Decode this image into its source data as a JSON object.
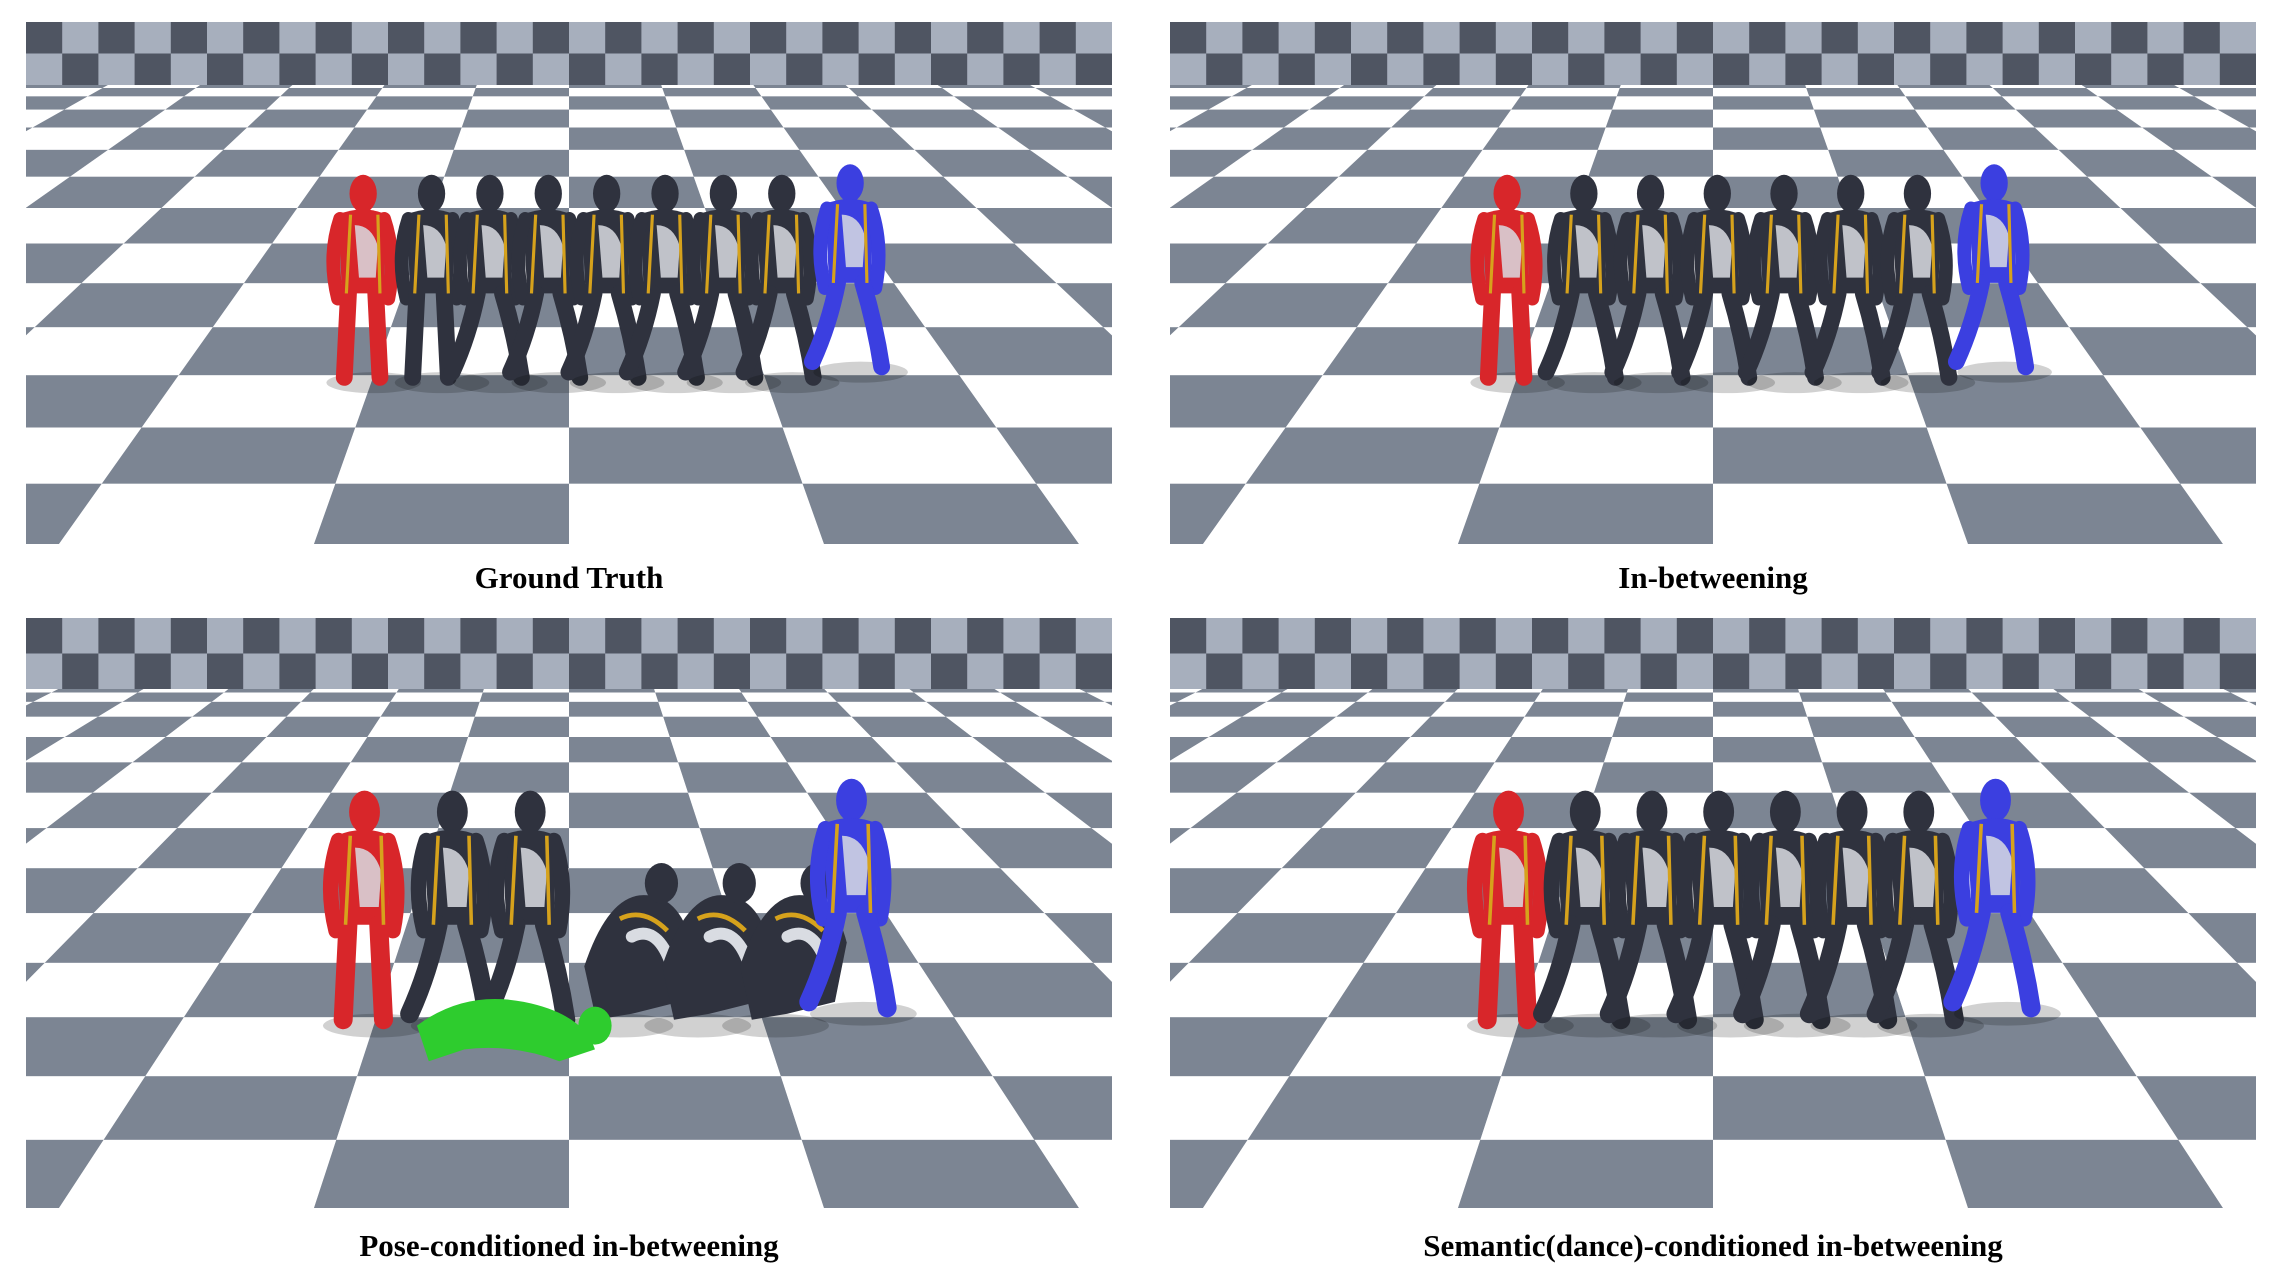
{
  "panels": [
    {
      "caption": "Ground Truth",
      "figures": [
        {
          "color": "#2f323e",
          "pose": "stand"
        },
        {
          "color": "#2f323e",
          "pose": "walk"
        },
        {
          "color": "#2f323e",
          "pose": "walk"
        },
        {
          "color": "#2f323e",
          "pose": "walk"
        },
        {
          "color": "#2f323e",
          "pose": "walk"
        },
        {
          "color": "#2f323e",
          "pose": "walk"
        },
        {
          "color": "#2f323e",
          "pose": "walk"
        }
      ],
      "start_color": "#d8262a",
      "end_color": "#3b3fe0"
    },
    {
      "caption": "In-betweening",
      "figures": [
        {
          "color": "#2f323e",
          "pose": "walk"
        },
        {
          "color": "#2f323e",
          "pose": "walk"
        },
        {
          "color": "#2f323e",
          "pose": "walk"
        },
        {
          "color": "#2f323e",
          "pose": "walk"
        },
        {
          "color": "#2f323e",
          "pose": "walk"
        },
        {
          "color": "#2f323e",
          "pose": "walk"
        }
      ],
      "start_color": "#d8262a",
      "end_color": "#3b3fe0"
    },
    {
      "caption": "Pose-conditioned in-betweening",
      "figures": [
        {
          "color": "#2f323e",
          "pose": "walk"
        },
        {
          "color": "#2f323e",
          "pose": "walk"
        },
        {
          "color": "#2f323e",
          "pose": "crouch"
        },
        {
          "color": "#2f323e",
          "pose": "crouch"
        },
        {
          "color": "#2f323e",
          "pose": "crouch"
        }
      ],
      "start_color": "#d8262a",
      "end_color": "#3b3fe0",
      "condition_color": "#2ecc2e"
    },
    {
      "caption": "Semantic(dance)-conditioned in-betweening",
      "figures": [
        {
          "color": "#2f323e",
          "pose": "walk"
        },
        {
          "color": "#2f323e",
          "pose": "walk"
        },
        {
          "color": "#2f323e",
          "pose": "walk"
        },
        {
          "color": "#2f323e",
          "pose": "walk"
        },
        {
          "color": "#2f323e",
          "pose": "walk"
        },
        {
          "color": "#2f323e",
          "pose": "walk"
        }
      ],
      "start_color": "#d8262a",
      "end_color": "#3b3fe0"
    }
  ],
  "colors": {
    "floor_dark": "#7c8593",
    "floor_light": "#ffffff",
    "wall_dark": "#4f5562",
    "wall_light": "#a7afbd",
    "sky": "#c9ced6",
    "suit_stripe": "#d6a21c",
    "body_light": "#d9dce2"
  }
}
